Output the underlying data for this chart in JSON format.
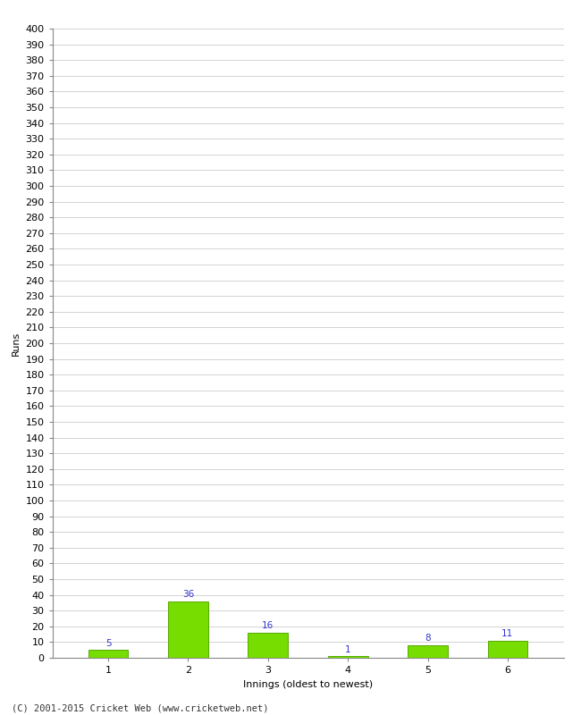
{
  "categories": [
    "1",
    "2",
    "3",
    "4",
    "5",
    "6"
  ],
  "values": [
    5,
    36,
    16,
    1,
    8,
    11
  ],
  "bar_color": "#77dd00",
  "bar_edge_color": "#55aa00",
  "value_color": "#3333cc",
  "xlabel": "Innings (oldest to newest)",
  "ylabel": "Runs",
  "ylim": [
    0,
    400
  ],
  "background_color": "#ffffff",
  "grid_color": "#cccccc",
  "footer_text": "(C) 2001-2015 Cricket Web (www.cricketweb.net)",
  "value_fontsize": 7.5,
  "axis_fontsize": 8,
  "label_fontsize": 8,
  "footer_fontsize": 7.5,
  "tick_color": "#666666"
}
